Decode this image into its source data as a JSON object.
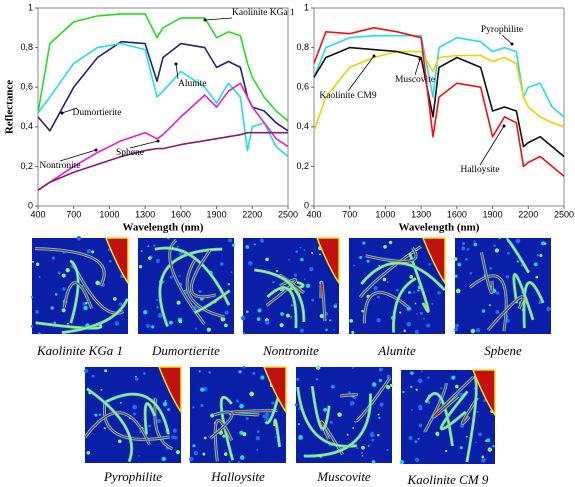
{
  "chart_data": [
    {
      "type": "line",
      "xlabel": "Wavelength (nm)",
      "ylabel": "Reflectance",
      "x": [
        400,
        500,
        700,
        900,
        1100,
        1300,
        1400,
        1450,
        1600,
        1800,
        1900,
        2000,
        2100,
        2160,
        2200,
        2300,
        2400,
        2500
      ],
      "xlim": [
        400,
        2500
      ],
      "xticks": [
        400,
        700,
        1000,
        1300,
        1600,
        1900,
        2200,
        2500
      ],
      "ylim": [
        0,
        1
      ],
      "yticks": [
        0,
        {
          "value": 0.2,
          "label": "0,2"
        },
        {
          "value": 0.4,
          "label": "0,4"
        },
        {
          "value": 0.6,
          "label": "0,6"
        },
        {
          "value": 0.8,
          "label": "0,8"
        },
        1
      ],
      "series": [
        {
          "name": "Kaolinite KGa 1",
          "color": "#22dd22",
          "values": [
            0.47,
            0.82,
            0.93,
            0.96,
            0.97,
            0.97,
            0.85,
            0.9,
            0.95,
            0.95,
            0.85,
            0.88,
            0.86,
            0.72,
            0.65,
            0.55,
            0.48,
            0.43
          ]
        },
        {
          "name": "Dumortierite",
          "color": "#24246e",
          "values": [
            0.45,
            0.38,
            0.6,
            0.75,
            0.83,
            0.82,
            0.63,
            0.75,
            0.82,
            0.8,
            0.7,
            0.73,
            0.7,
            0.55,
            0.5,
            0.48,
            0.42,
            0.38
          ]
        },
        {
          "name": "Alunite",
          "color": "#22dde8",
          "values": [
            0.47,
            0.55,
            0.72,
            0.8,
            0.82,
            0.79,
            0.55,
            0.58,
            0.68,
            0.6,
            0.52,
            0.62,
            0.55,
            0.28,
            0.4,
            0.42,
            0.3,
            0.25
          ]
        },
        {
          "name": "Nontronite",
          "color": "#e020d0",
          "values": [
            0.08,
            0.12,
            0.2,
            0.27,
            0.33,
            0.37,
            0.34,
            0.36,
            0.45,
            0.56,
            0.5,
            0.58,
            0.62,
            0.55,
            0.5,
            0.42,
            0.34,
            0.3
          ]
        },
        {
          "name": "Sphene",
          "color": "#8b1a6b",
          "values": [
            0.08,
            0.12,
            0.17,
            0.21,
            0.25,
            0.28,
            0.29,
            0.29,
            0.31,
            0.33,
            0.34,
            0.35,
            0.36,
            0.37,
            0.37,
            0.37,
            0.37,
            0.37
          ]
        }
      ]
    },
    {
      "type": "line",
      "xlabel": "Wavelength (nm)",
      "x": [
        400,
        500,
        700,
        900,
        1100,
        1300,
        1400,
        1450,
        1600,
        1800,
        1900,
        2000,
        2100,
        2160,
        2200,
        2300,
        2400,
        2500
      ],
      "xlim": [
        400,
        2500
      ],
      "xticks": [
        400,
        700,
        1000,
        1300,
        1600,
        1900,
        2200,
        2500
      ],
      "ylim": [
        0,
        1
      ],
      "yticks": [
        0,
        {
          "value": 0.2,
          "label": "0,2"
        },
        {
          "value": 0.4,
          "label": "0,4"
        },
        {
          "value": 0.6,
          "label": "0,6"
        },
        {
          "value": 0.8,
          "label": "0,8"
        },
        1
      ],
      "series": [
        {
          "name": "Pyrophilite",
          "color": "#22dde8",
          "values": [
            0.65,
            0.8,
            0.85,
            0.86,
            0.86,
            0.86,
            0.55,
            0.8,
            0.85,
            0.83,
            0.78,
            0.8,
            0.78,
            0.55,
            0.6,
            0.62,
            0.5,
            0.45
          ]
        },
        {
          "name": "Muscovite",
          "color": "#f0d000",
          "values": [
            0.38,
            0.55,
            0.7,
            0.75,
            0.78,
            0.78,
            0.68,
            0.75,
            0.76,
            0.76,
            0.73,
            0.75,
            0.72,
            0.55,
            0.5,
            0.45,
            0.42,
            0.4
          ]
        },
        {
          "name": "Kaolinite CM9",
          "color": "#111111",
          "values": [
            0.65,
            0.75,
            0.8,
            0.79,
            0.78,
            0.75,
            0.45,
            0.7,
            0.75,
            0.7,
            0.48,
            0.5,
            0.48,
            0.3,
            0.32,
            0.35,
            0.3,
            0.25
          ]
        },
        {
          "name": "Halloysite",
          "color": "#ee1111",
          "values": [
            0.72,
            0.88,
            0.87,
            0.9,
            0.88,
            0.85,
            0.35,
            0.55,
            0.62,
            0.6,
            0.35,
            0.45,
            0.42,
            0.2,
            0.22,
            0.25,
            0.2,
            0.15
          ]
        }
      ]
    }
  ],
  "captions": [
    "Kaolinite KGa 1",
    "Dumortierite",
    "Nontronite",
    "Alunite",
    "Spbene",
    "Pyrophilite",
    "Halloysite",
    "Muscovite",
    "Kaolinite CM 9"
  ]
}
